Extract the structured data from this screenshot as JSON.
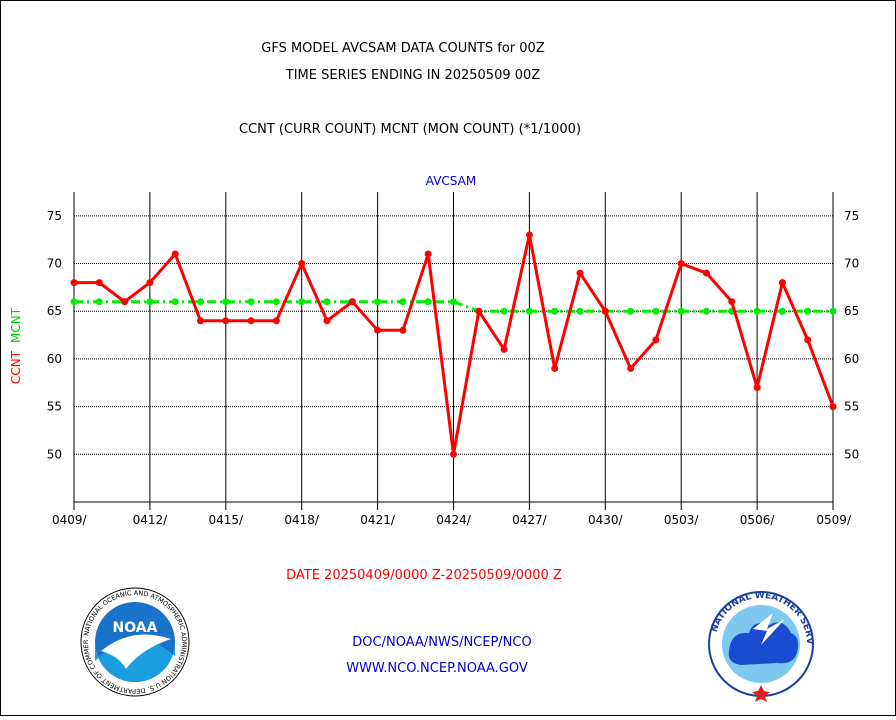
{
  "header": {
    "title_line1": "GFS MODEL AVCSAM DATA COUNTS for 00Z",
    "title_line2": "TIME SERIES ENDING IN 20250509 00Z",
    "subtitle": "CCNT (CURR COUNT) MCNT (MON COUNT) (*1/1000)"
  },
  "chart_data": {
    "type": "line",
    "title": "AVCSAM",
    "ylabel_ccnt": "CCNT",
    "ylabel_mcnt": "MCNT",
    "ylim": [
      45,
      77.5
    ],
    "yticks": [
      50,
      55,
      60,
      65,
      70,
      75
    ],
    "ytick_labels": [
      "50",
      "55",
      "60",
      "65",
      "70",
      "75"
    ],
    "xlim": [
      0,
      30
    ],
    "xticks": [
      0,
      3,
      6,
      9,
      12,
      15,
      18,
      21,
      24,
      27,
      30
    ],
    "xtick_labels": [
      "0409/",
      "0412/",
      "0415/",
      "0418/",
      "0421/",
      "0424/",
      "0427/",
      "0430/",
      "0503/",
      "0506/",
      "0509/"
    ],
    "grid": true,
    "colors": {
      "ccnt": "#ff0000",
      "mcnt": "#00ee00",
      "axis_title": "#0000cc"
    },
    "series": [
      {
        "name": "CCNT",
        "x": [
          0,
          1,
          2,
          3,
          4,
          5,
          6,
          7,
          8,
          9,
          10,
          11,
          12,
          13,
          14,
          15,
          16,
          17,
          18,
          19,
          20,
          21,
          22,
          23,
          24,
          25,
          26,
          27,
          28,
          29,
          30
        ],
        "values": [
          68,
          68,
          66,
          68,
          71,
          64,
          64,
          64,
          64,
          70,
          64,
          66,
          63,
          63,
          71,
          50,
          65,
          61,
          73,
          59,
          69,
          65,
          59,
          62,
          70,
          69,
          66,
          57,
          68,
          62,
          55
        ]
      },
      {
        "name": "MCNT",
        "x": [
          0,
          1,
          2,
          3,
          4,
          5,
          6,
          7,
          8,
          9,
          10,
          11,
          12,
          13,
          14,
          15,
          16,
          17,
          18,
          19,
          20,
          21,
          22,
          23,
          24,
          25,
          26,
          27,
          28,
          29,
          30
        ],
        "values": [
          66,
          66,
          66,
          66,
          66,
          66,
          66,
          66,
          66,
          66,
          66,
          66,
          66,
          66,
          66,
          66,
          65,
          65,
          65,
          65,
          65,
          65,
          65,
          65,
          65,
          65,
          65,
          65,
          65,
          65,
          65
        ]
      }
    ]
  },
  "footer": {
    "date_range": "DATE 20250409/0000 Z-20250509/0000 Z",
    "org_path": "DOC/NOAA/NWS/NCEP/NCO",
    "website": "WWW.NCO.NCEP.NOAA.GOV"
  },
  "logos": {
    "noaa_text": "NOAA",
    "noaa_ring_text": "NATIONAL OCEANIC AND ATMOSPHERIC ADMINISTRATION U.S. DEPARTMENT OF COMMERCE",
    "nws_ring_text": "NATIONAL WEATHER SERVICE"
  }
}
